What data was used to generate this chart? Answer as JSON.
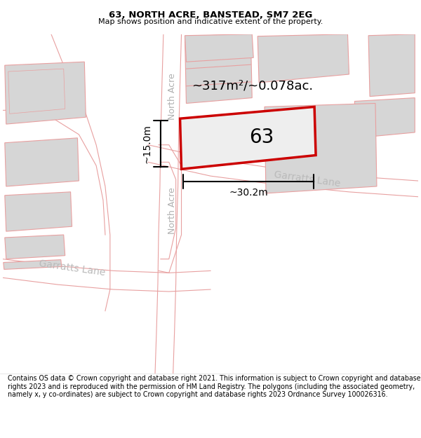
{
  "title": "63, NORTH ACRE, BANSTEAD, SM7 2EG",
  "subtitle": "Map shows position and indicative extent of the property.",
  "footer": "Contains OS data © Crown copyright and database right 2021. This information is subject to Crown copyright and database rights 2023 and is reproduced with the permission of HM Land Registry. The polygons (including the associated geometry, namely x, y co-ordinates) are subject to Crown copyright and database rights 2023 Ordnance Survey 100026316.",
  "map_bg": "#f5f5f5",
  "road_color": "#ffffff",
  "building_color": "#d6d6d6",
  "road_outline_color": "#e8a0a0",
  "highlight_color": "#cc0000",
  "area_text": "~317m²/~0.078ac.",
  "dim_width": "~30.2m",
  "dim_height": "~15.0m",
  "property_label": "63",
  "road_label_color": "#b0b0b0",
  "garratts_label_color": "#bbbbbb"
}
